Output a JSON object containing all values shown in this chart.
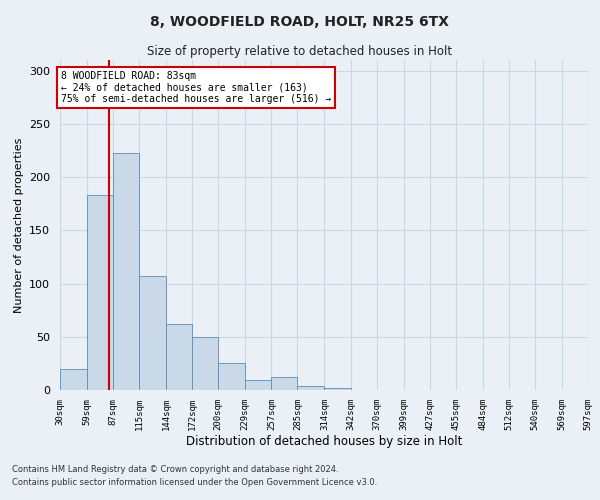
{
  "title": "8, WOODFIELD ROAD, HOLT, NR25 6TX",
  "subtitle": "Size of property relative to detached houses in Holt",
  "xlabel": "Distribution of detached houses by size in Holt",
  "ylabel": "Number of detached properties",
  "bar_values": [
    20,
    183,
    223,
    107,
    62,
    50,
    25,
    9,
    12,
    4,
    2,
    0,
    0,
    0,
    0,
    0,
    0,
    0,
    0,
    0,
    0
  ],
  "bin_edges": [
    30,
    59,
    87,
    115,
    144,
    172,
    200,
    229,
    257,
    285,
    314,
    342,
    370,
    399,
    427,
    455,
    484,
    512,
    540,
    569,
    597
  ],
  "tick_labels": [
    "30sqm",
    "59sqm",
    "87sqm",
    "115sqm",
    "144sqm",
    "172sqm",
    "200sqm",
    "229sqm",
    "257sqm",
    "285sqm",
    "314sqm",
    "342sqm",
    "370sqm",
    "399sqm",
    "427sqm",
    "455sqm",
    "484sqm",
    "512sqm",
    "540sqm",
    "569sqm",
    "597sqm"
  ],
  "bar_color": "#c9d9e8",
  "bar_edge_color": "#5b8db8",
  "red_line_x": 83,
  "annotation_title": "8 WOODFIELD ROAD: 83sqm",
  "annotation_line1": "← 24% of detached houses are smaller (163)",
  "annotation_line2": "75% of semi-detached houses are larger (516) →",
  "annotation_box_color": "#ffffff",
  "annotation_box_edge": "#cc0000",
  "red_line_color": "#cc0000",
  "grid_color": "#c8d8e8",
  "bg_color": "#eaf0f6",
  "footnote1": "Contains HM Land Registry data © Crown copyright and database right 2024.",
  "footnote2": "Contains public sector information licensed under the Open Government Licence v3.0.",
  "ylim": [
    0,
    310
  ],
  "yticks": [
    0,
    50,
    100,
    150,
    200,
    250,
    300
  ]
}
